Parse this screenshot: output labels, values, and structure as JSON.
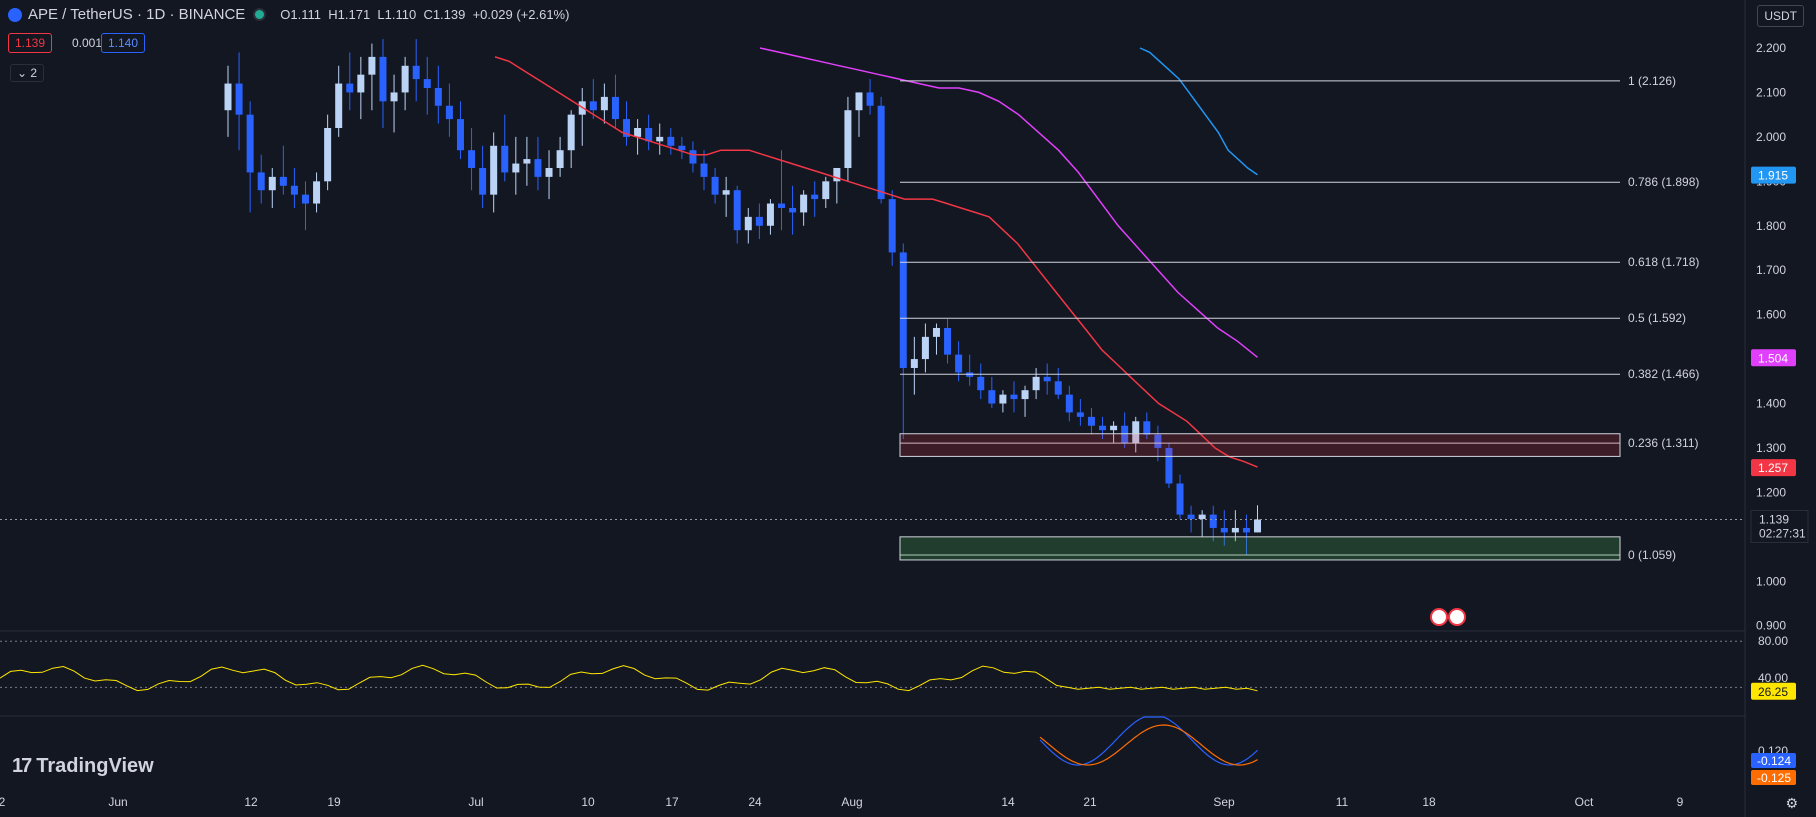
{
  "header": {
    "symbol": "APE / TetherUS · 1D · BINANCE",
    "open": "O1.111",
    "high": "H1.171",
    "low": "L1.110",
    "close": "C1.139",
    "change": "+0.029 (+2.61%)"
  },
  "quote": {
    "bid": "1.139",
    "spread": "0.001",
    "ask": "1.140"
  },
  "collapse_label": "2",
  "currency_button": "USDT",
  "brand": "TradingView",
  "colors": {
    "background": "#131722",
    "up_candle": "#bbd3f5",
    "down_candle": "#2962ff",
    "ma_red": "#f23645",
    "ma_magenta": "#e040fb",
    "ma_blue": "#2196f3",
    "rsi": "#e8d84a",
    "macd": "#2962ff",
    "signal": "#ff6d00"
  },
  "chart_data": {
    "type": "candlestick",
    "price_axis": {
      "ticks": [
        "2.200",
        "2.100",
        "2.000",
        "1.900",
        "1.800",
        "1.700",
        "1.600",
        "1.500",
        "1.400",
        "1.300",
        "1.200",
        "1.100",
        "1.000",
        "0.900"
      ]
    },
    "time_axis": {
      "ticks": [
        "2",
        "Jun",
        "12",
        "19",
        "Jul",
        "10",
        "17",
        "24",
        "Aug",
        "14",
        "21",
        "Sep",
        "11",
        "18",
        "Oct",
        "9"
      ]
    },
    "fibonacci": [
      {
        "label": "1 (2.126)",
        "price": 2.126
      },
      {
        "label": "0.786 (1.898)",
        "price": 1.898
      },
      {
        "label": "0.618 (1.718)",
        "price": 1.718
      },
      {
        "label": "0.5 (1.592)",
        "price": 1.592
      },
      {
        "label": "0.382 (1.466)",
        "price": 1.466
      },
      {
        "label": "0.236 (1.311)",
        "price": 1.311
      },
      {
        "label": "0 (1.059)",
        "price": 1.059
      }
    ],
    "zones": [
      {
        "kind": "resistance",
        "top": 1.332,
        "bottom": 1.281
      },
      {
        "kind": "support",
        "top": 1.1,
        "bottom": 1.048
      }
    ],
    "series_labels": [
      {
        "value": "1.915",
        "price": 1.915,
        "color": "#2196f3"
      },
      {
        "value": "1.504",
        "price": 1.504,
        "color": "#e040fb"
      },
      {
        "value": "1.257",
        "price": 1.257,
        "color": "#f23645"
      }
    ],
    "current_price": {
      "value": "1.139",
      "countdown": "02:27:31",
      "price": 1.139
    },
    "candles": [
      [
        2.06,
        2.16,
        2.0,
        2.12
      ],
      [
        2.12,
        2.19,
        1.97,
        2.05
      ],
      [
        2.05,
        2.08,
        1.83,
        1.92
      ],
      [
        1.92,
        1.96,
        1.85,
        1.88
      ],
      [
        1.88,
        1.93,
        1.84,
        1.91
      ],
      [
        1.91,
        1.98,
        1.87,
        1.89
      ],
      [
        1.89,
        1.93,
        1.84,
        1.87
      ],
      [
        1.87,
        1.9,
        1.79,
        1.85
      ],
      [
        1.85,
        1.92,
        1.83,
        1.9
      ],
      [
        1.9,
        2.05,
        1.88,
        2.02
      ],
      [
        2.02,
        2.16,
        2.0,
        2.12
      ],
      [
        2.12,
        2.19,
        2.06,
        2.1
      ],
      [
        2.1,
        2.18,
        2.04,
        2.14
      ],
      [
        2.14,
        2.21,
        2.06,
        2.18
      ],
      [
        2.18,
        2.22,
        2.02,
        2.08
      ],
      [
        2.08,
        2.14,
        2.01,
        2.1
      ],
      [
        2.1,
        2.18,
        2.06,
        2.16
      ],
      [
        2.16,
        2.22,
        2.08,
        2.13
      ],
      [
        2.13,
        2.18,
        2.05,
        2.11
      ],
      [
        2.11,
        2.16,
        2.03,
        2.07
      ],
      [
        2.07,
        2.12,
        2.0,
        2.04
      ],
      [
        2.04,
        2.08,
        1.95,
        1.97
      ],
      [
        1.97,
        2.02,
        1.88,
        1.93
      ],
      [
        1.93,
        1.98,
        1.84,
        1.87
      ],
      [
        1.87,
        2.01,
        1.83,
        1.98
      ],
      [
        1.98,
        2.05,
        1.9,
        1.92
      ],
      [
        1.92,
        2.0,
        1.87,
        1.94
      ],
      [
        1.94,
        2.0,
        1.89,
        1.95
      ],
      [
        1.95,
        2.0,
        1.88,
        1.91
      ],
      [
        1.91,
        1.97,
        1.86,
        1.93
      ],
      [
        1.93,
        2.0,
        1.91,
        1.97
      ],
      [
        1.97,
        2.06,
        1.93,
        2.05
      ],
      [
        2.05,
        2.11,
        1.98,
        2.08
      ],
      [
        2.08,
        2.13,
        2.04,
        2.06
      ],
      [
        2.06,
        2.12,
        2.03,
        2.09
      ],
      [
        2.09,
        2.14,
        2.02,
        2.04
      ],
      [
        2.04,
        2.08,
        1.98,
        2.0
      ],
      [
        2.0,
        2.04,
        1.96,
        2.02
      ],
      [
        2.02,
        2.05,
        1.97,
        1.99
      ],
      [
        1.99,
        2.03,
        1.96,
        2.0
      ],
      [
        2.0,
        2.02,
        1.96,
        1.98
      ],
      [
        1.98,
        2.0,
        1.95,
        1.97
      ],
      [
        1.97,
        1.99,
        1.92,
        1.94
      ],
      [
        1.94,
        1.97,
        1.88,
        1.91
      ],
      [
        1.91,
        1.93,
        1.85,
        1.87
      ],
      [
        1.87,
        1.91,
        1.82,
        1.88
      ],
      [
        1.88,
        1.89,
        1.76,
        1.79
      ],
      [
        1.79,
        1.84,
        1.76,
        1.82
      ],
      [
        1.82,
        1.85,
        1.77,
        1.8
      ],
      [
        1.8,
        1.86,
        1.78,
        1.85
      ],
      [
        1.85,
        1.97,
        1.79,
        1.84
      ],
      [
        1.84,
        1.89,
        1.78,
        1.83
      ],
      [
        1.83,
        1.88,
        1.8,
        1.87
      ],
      [
        1.87,
        1.9,
        1.82,
        1.86
      ],
      [
        1.86,
        1.91,
        1.84,
        1.9
      ],
      [
        1.9,
        1.93,
        1.85,
        1.93
      ],
      [
        1.93,
        2.09,
        1.9,
        2.06
      ],
      [
        2.06,
        2.1,
        2.0,
        2.1
      ],
      [
        2.1,
        2.13,
        2.05,
        2.07
      ],
      [
        2.07,
        2.09,
        1.85,
        1.86
      ],
      [
        1.86,
        1.88,
        1.71,
        1.74
      ],
      [
        1.74,
        1.76,
        1.32,
        1.48
      ],
      [
        1.48,
        1.55,
        1.42,
        1.5
      ],
      [
        1.5,
        1.58,
        1.47,
        1.55
      ],
      [
        1.55,
        1.58,
        1.51,
        1.57
      ],
      [
        1.57,
        1.59,
        1.49,
        1.51
      ],
      [
        1.51,
        1.54,
        1.45,
        1.47
      ],
      [
        1.47,
        1.51,
        1.44,
        1.46
      ],
      [
        1.46,
        1.49,
        1.41,
        1.43
      ],
      [
        1.43,
        1.46,
        1.39,
        1.4
      ],
      [
        1.4,
        1.43,
        1.38,
        1.42
      ],
      [
        1.42,
        1.45,
        1.38,
        1.41
      ],
      [
        1.41,
        1.44,
        1.37,
        1.43
      ],
      [
        1.43,
        1.48,
        1.41,
        1.46
      ],
      [
        1.46,
        1.49,
        1.42,
        1.45
      ],
      [
        1.45,
        1.48,
        1.41,
        1.42
      ],
      [
        1.42,
        1.44,
        1.36,
        1.38
      ],
      [
        1.38,
        1.41,
        1.35,
        1.37
      ],
      [
        1.37,
        1.39,
        1.33,
        1.35
      ],
      [
        1.35,
        1.37,
        1.32,
        1.34
      ],
      [
        1.34,
        1.36,
        1.31,
        1.35
      ],
      [
        1.35,
        1.38,
        1.3,
        1.31
      ],
      [
        1.31,
        1.37,
        1.29,
        1.36
      ],
      [
        1.36,
        1.38,
        1.32,
        1.33
      ],
      [
        1.33,
        1.35,
        1.27,
        1.3
      ],
      [
        1.3,
        1.31,
        1.21,
        1.22
      ],
      [
        1.22,
        1.24,
        1.14,
        1.15
      ],
      [
        1.15,
        1.17,
        1.11,
        1.14
      ],
      [
        1.14,
        1.16,
        1.1,
        1.15
      ],
      [
        1.15,
        1.17,
        1.09,
        1.12
      ],
      [
        1.12,
        1.16,
        1.08,
        1.11
      ],
      [
        1.11,
        1.16,
        1.09,
        1.12
      ],
      [
        1.12,
        1.15,
        1.06,
        1.11
      ],
      [
        1.11,
        1.171,
        1.11,
        1.139
      ]
    ],
    "ma_red": [
      2.18,
      2.17,
      2.15,
      2.13,
      2.11,
      2.09,
      2.07,
      2.05,
      2.03,
      2.01,
      2.0,
      1.99,
      1.98,
      1.97,
      1.96,
      1.96,
      1.97,
      1.97,
      1.97,
      1.96,
      1.95,
      1.94,
      1.93,
      1.92,
      1.91,
      1.9,
      1.89,
      1.88,
      1.87,
      1.86,
      1.86,
      1.86,
      1.85,
      1.84,
      1.83,
      1.82,
      1.79,
      1.76,
      1.72,
      1.68,
      1.64,
      1.6,
      1.56,
      1.52,
      1.49,
      1.46,
      1.43,
      1.4,
      1.38,
      1.36,
      1.33,
      1.3,
      1.28,
      1.27,
      1.257
    ],
    "ma_magenta": [
      2.2,
      2.19,
      2.18,
      2.17,
      2.16,
      2.15,
      2.14,
      2.13,
      2.12,
      2.11,
      2.11,
      2.1,
      2.08,
      2.05,
      2.01,
      1.97,
      1.92,
      1.86,
      1.8,
      1.75,
      1.7,
      1.65,
      1.61,
      1.57,
      1.54,
      1.504
    ],
    "ma_blue": [
      2.2,
      2.19,
      2.17,
      2.15,
      2.13,
      2.1,
      2.07,
      2.04,
      2.01,
      1.97,
      1.95,
      1.93,
      1.915
    ],
    "rsi": {
      "ticks": [
        "80.00",
        "40.00"
      ],
      "value": "26.25",
      "color": "#ffe600"
    },
    "macd": {
      "ticks": [
        "0.120"
      ],
      "macd_value": "-0.124",
      "signal_value": "-0.125"
    }
  }
}
